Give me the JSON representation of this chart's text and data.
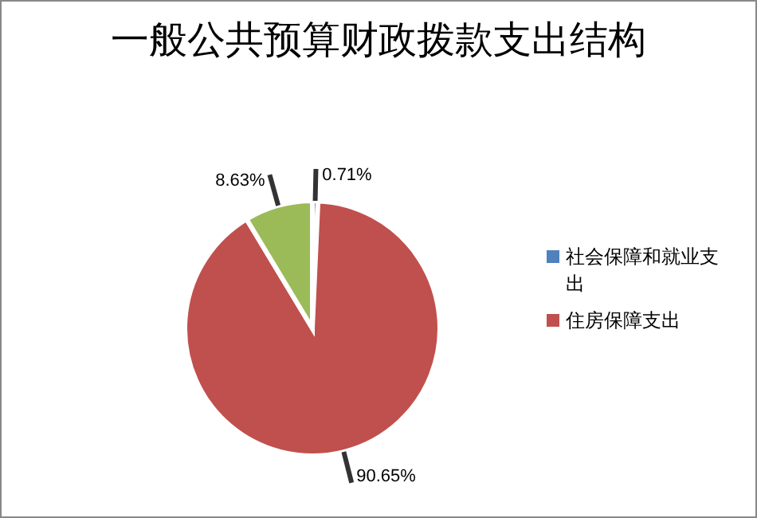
{
  "chart_data": {
    "type": "pie",
    "title": "一般公共预算财政拨款支出结构",
    "categories": [
      "社会保障和就业支出",
      "住房保障支出",
      null
    ],
    "values": [
      0.71,
      90.65,
      8.63
    ],
    "colors": [
      "#4f81bd",
      "#c0504d",
      "#9bbb59"
    ],
    "value_labels": [
      "0.71%",
      "90.65%",
      "8.63%"
    ],
    "legend": "right"
  }
}
